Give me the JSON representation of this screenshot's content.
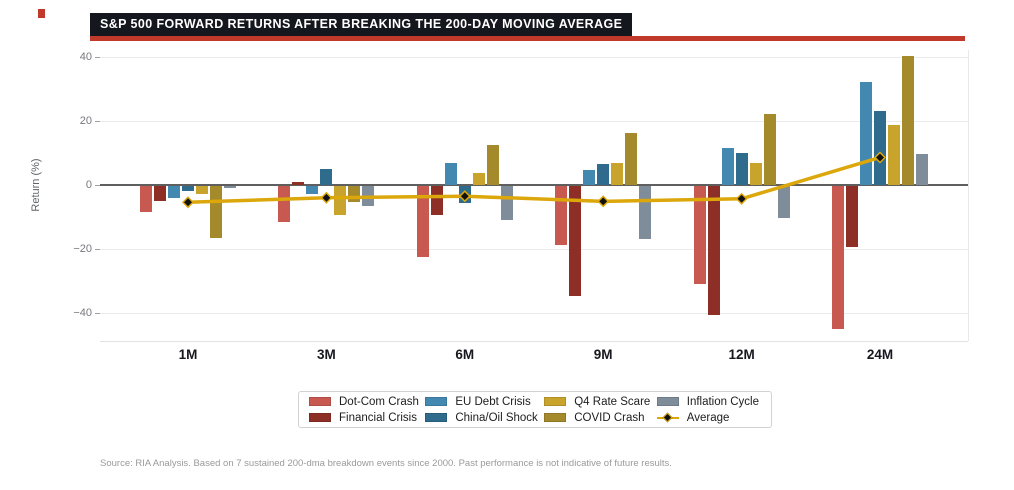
{
  "title": "S&P 500 FORWARD RETURNS AFTER BREAKING THE 200-DAY MOVING AVERAGE",
  "source_note": "Source: RIA Analysis. Based on 7 sustained 200-dma breakdown events since 2000. Past performance is not indicative of future results.",
  "colors": {
    "accent_red": "#c0392b",
    "title_bg": "#15171e",
    "title_text": "#ffffff",
    "zero_line": "#5f5f5f",
    "gridline": "#ebebeb"
  },
  "chart_data": {
    "type": "bar",
    "title": "S&P 500 FORWARD RETURNS AFTER BREAKING THE 200-DAY MOVING AVERAGE",
    "xlabel": "",
    "ylabel": "Return (%)",
    "ylim": [
      -49,
      42
    ],
    "yticks": [
      40,
      20,
      0,
      -20,
      -40
    ],
    "grid": "horizontal",
    "legend_position": "bottom",
    "categories": [
      "1M",
      "3M",
      "6M",
      "9M",
      "12M",
      "24M"
    ],
    "series": [
      {
        "name": "Dot-Com Crash",
        "color": "#c75950",
        "values": [
          -8.0,
          -11.2,
          -22.3,
          -18.4,
          -30.6,
          -44.8
        ]
      },
      {
        "name": "Financial Crisis",
        "color": "#8e2f27",
        "values": [
          -4.6,
          0.9,
          -9.0,
          -34.5,
          -40.3,
          -19.2
        ]
      },
      {
        "name": "EU Debt Crisis",
        "color": "#4288b0",
        "values": [
          -3.9,
          -2.5,
          7.0,
          4.6,
          11.7,
          32.2
        ]
      },
      {
        "name": "China/Oil Shock",
        "color": "#2f6b8d",
        "values": [
          -1.5,
          5.0,
          -5.4,
          6.5,
          10.0,
          23.1
        ]
      },
      {
        "name": "Q4 Rate Scare",
        "color": "#c9a42c",
        "values": [
          -2.5,
          -9.1,
          3.7,
          7.0,
          7.0,
          18.9
        ]
      },
      {
        "name": "COVID Crash",
        "color": "#a58a2b",
        "values": [
          -16.2,
          -5.1,
          12.4,
          16.1,
          22.2,
          40.2
        ]
      },
      {
        "name": "Inflation Cycle",
        "color": "#7f8d9b",
        "values": [
          -0.7,
          -6.3,
          -10.6,
          -16.7,
          -10.0,
          9.7
        ]
      }
    ],
    "average_line": {
      "name": "Average",
      "color": "#dca70a",
      "marker": "diamond",
      "marker_color": "#111111",
      "values": [
        -5.4,
        -4.0,
        -3.5,
        -5.1,
        -4.3,
        8.6
      ]
    }
  }
}
